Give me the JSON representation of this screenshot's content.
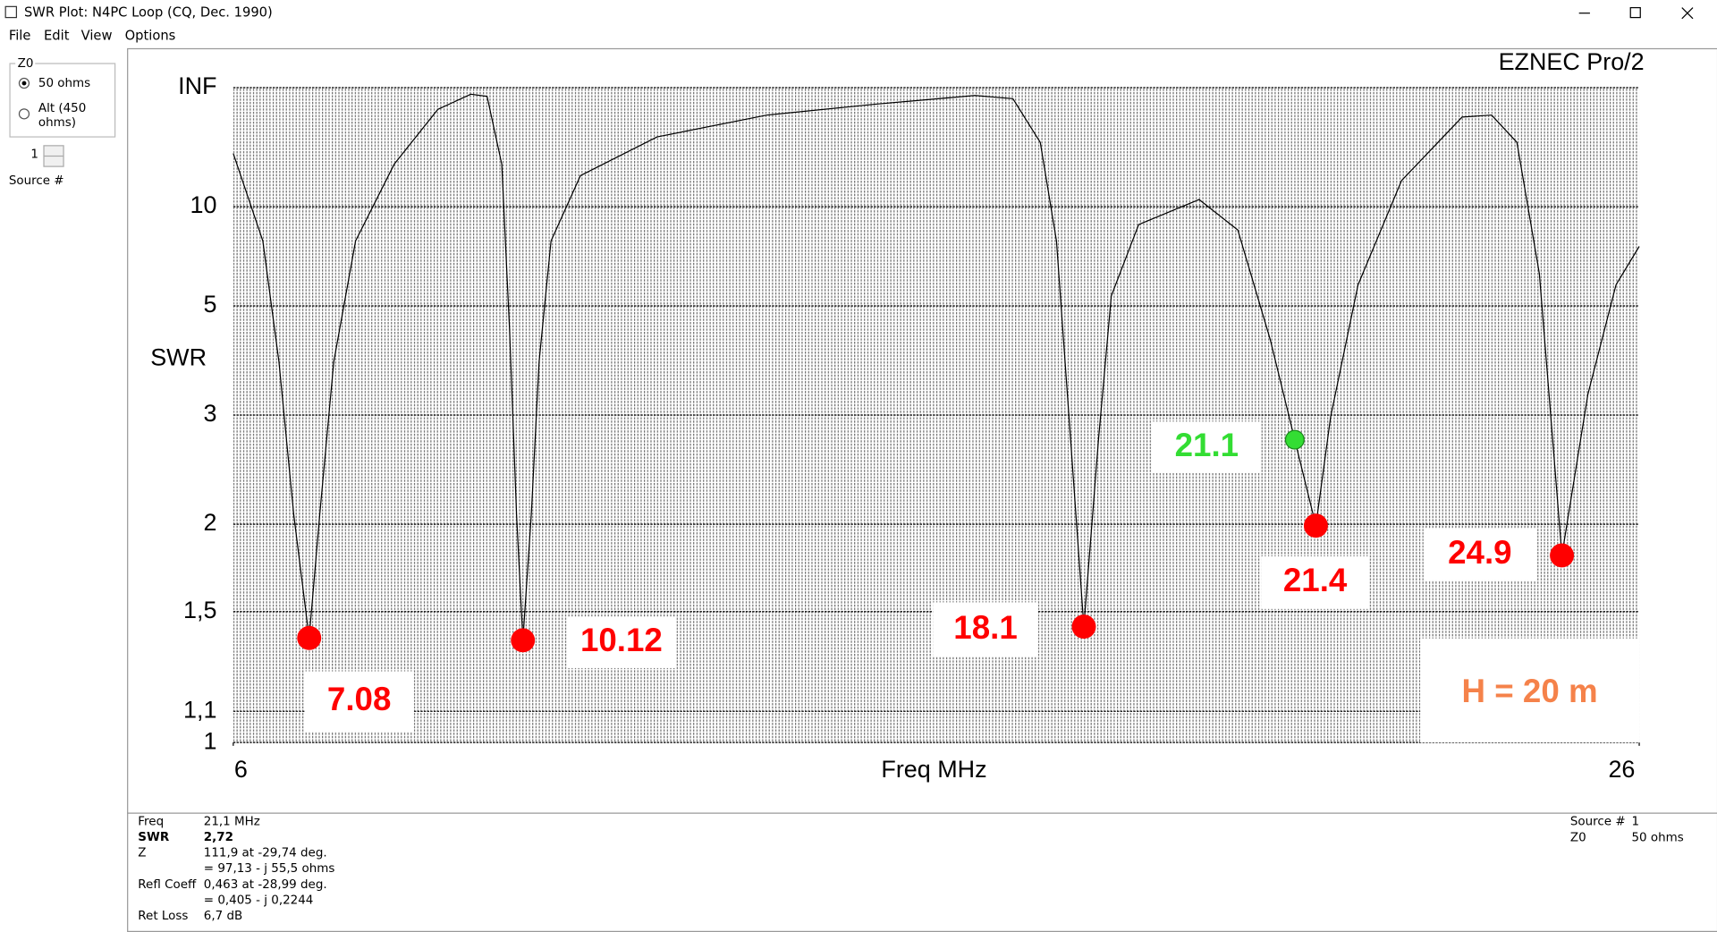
{
  "window": {
    "title": "SWR Plot: N4PC Loop (CQ, Dec. 1990)"
  },
  "menu": [
    "File",
    "Edit",
    "View",
    "Options"
  ],
  "sidebar": {
    "group_label": "Z0",
    "options": [
      [
        "50 ohms"
      ],
      [
        "Alt (450",
        "ohms)"
      ]
    ],
    "selected": 0,
    "source_value": "1",
    "source_label": "Source #"
  },
  "chart_data": {
    "type": "line",
    "brand": "EZNEC Pro/2",
    "x_label": "Freq MHz",
    "y_label": "SWR",
    "y_scale": "reflection-coefficient",
    "xlim": [
      6,
      26
    ],
    "xticks": [
      6,
      26
    ],
    "ylim": [
      1,
      "INF"
    ],
    "yticks": [
      1,
      {
        "value": 1.1,
        "label": "1,1"
      },
      {
        "value": 1.5,
        "label": "1,5"
      },
      2,
      3,
      5,
      10,
      "INF"
    ],
    "grid": true,
    "color": "#000000",
    "x": [
      6.0,
      6.42,
      6.65,
      6.86,
      7.08,
      7.23,
      7.43,
      7.74,
      8.29,
      8.91,
      9.38,
      9.61,
      9.82,
      9.93,
      10.03,
      10.12,
      10.24,
      10.35,
      10.52,
      10.94,
      12.03,
      13.59,
      15.14,
      16.55,
      17.09,
      17.48,
      17.71,
      17.91,
      18.1,
      18.31,
      18.49,
      18.88,
      19.74,
      20.29,
      20.75,
      21.1,
      21.4,
      21.61,
      22.0,
      22.62,
      23.48,
      23.9,
      24.26,
      24.58,
      24.9,
      25.27,
      25.67,
      26.0
    ],
    "values": [
      18.9,
      7.54,
      3.78,
      2.07,
      1.38,
      2.07,
      3.78,
      7.54,
      16.1,
      59,
      199,
      148,
      16.1,
      4.43,
      2.07,
      1.37,
      2.07,
      3.78,
      7.54,
      13.9,
      25.6,
      46.7,
      78,
      166,
      118,
      22.9,
      7.54,
      2.74,
      1.43,
      2.74,
      5.29,
      8.57,
      10.7,
      8.2,
      4.2,
      2.72,
      1.99,
      2.98,
      5.64,
      13.1,
      43.4,
      46.7,
      22.9,
      6.04,
      1.8,
      3.27,
      5.64,
      7.25
    ],
    "markers": [
      {
        "x": 7.08,
        "y": 1.38,
        "color": "#ff0000"
      },
      {
        "x": 10.12,
        "y": 1.37,
        "color": "#ff0000"
      },
      {
        "x": 18.1,
        "y": 1.43,
        "color": "#ff0000"
      },
      {
        "x": 21.1,
        "y": 2.72,
        "color": "#33dd33"
      },
      {
        "x": 21.4,
        "y": 1.99,
        "color": "#ff0000"
      },
      {
        "x": 24.9,
        "y": 1.8,
        "color": "#ff0000"
      }
    ],
    "annotation": {
      "text": "H = 20 m",
      "color": "#f5824a"
    }
  },
  "status": {
    "left": [
      {
        "label": "Freq",
        "lines": [
          "21,1 MHz"
        ]
      },
      {
        "label": "SWR",
        "lines": [
          "2,72"
        ]
      },
      {
        "label": "Z",
        "lines": [
          "111,9 at -29,74 deg.",
          "= 97,13 - j 55,5 ohms"
        ]
      },
      {
        "label": "Refl Coeff",
        "lines": [
          "0,463 at -28,99 deg.",
          "= 0,405 - j 0,2244"
        ]
      },
      {
        "label": "Ret Loss",
        "lines": [
          "6,7 dB"
        ]
      }
    ],
    "right": [
      {
        "label": "Source #",
        "lines": [
          "1"
        ]
      },
      {
        "label": "Z0",
        "lines": [
          "50 ohms"
        ]
      }
    ]
  }
}
